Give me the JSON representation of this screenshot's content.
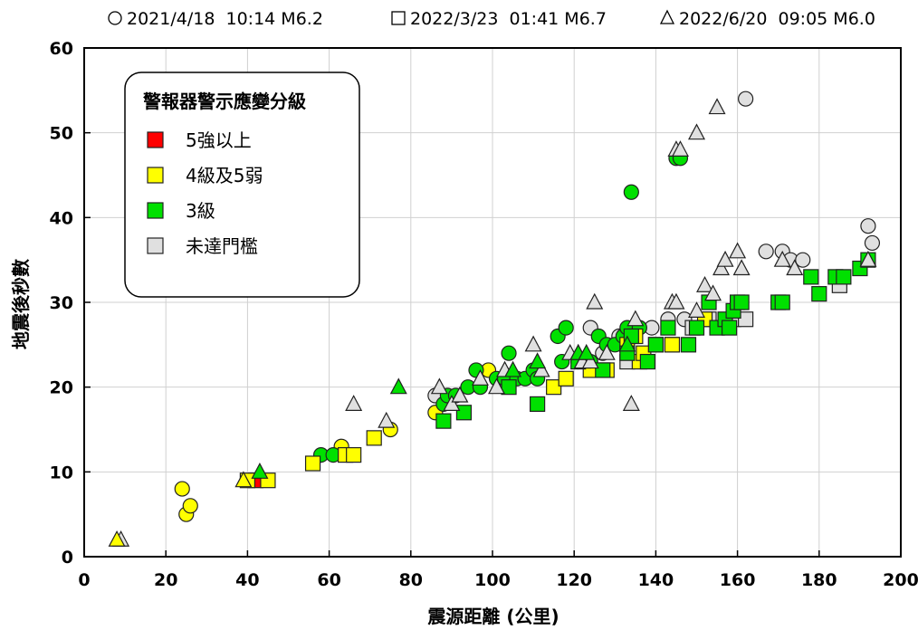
{
  "chart_data": {
    "type": "scatter",
    "xlabel": "震源距離 (公里)",
    "ylabel": "地震後秒數",
    "xlim": [
      0,
      200
    ],
    "ylim": [
      0,
      60
    ],
    "xticks": [
      0,
      20,
      40,
      60,
      80,
      100,
      120,
      140,
      160,
      180,
      200
    ],
    "yticks": [
      0,
      10,
      20,
      30,
      40,
      50,
      60
    ],
    "grid": true,
    "events": [
      {
        "marker": "circle",
        "label": "2021/4/18  10:14 M6.2"
      },
      {
        "marker": "square",
        "label": "2022/3/23  01:41 M6.7"
      },
      {
        "marker": "triangle",
        "label": "2022/6/20  09:05 M6.0"
      }
    ],
    "legend": {
      "title": "警報器警示應變分級",
      "position": "top-left",
      "items": [
        {
          "key": "red",
          "label": "5強以上",
          "color": "#ff0000"
        },
        {
          "key": "yellow",
          "label": "4級及5弱",
          "color": "#ffff00"
        },
        {
          "key": "green",
          "label": "3級",
          "color": "#00e000"
        },
        {
          "key": "gray",
          "label": "未達門檻",
          "color": "#e0e0e0"
        }
      ]
    },
    "series": [
      {
        "marker": "circle",
        "level": "gray",
        "points": [
          [
            86,
            19
          ],
          [
            124,
            27
          ],
          [
            127,
            24
          ],
          [
            131,
            26
          ],
          [
            139,
            27
          ],
          [
            143,
            28
          ],
          [
            147,
            28
          ],
          [
            162,
            54
          ],
          [
            167,
            36
          ],
          [
            171,
            36
          ],
          [
            173,
            35
          ],
          [
            176,
            35
          ],
          [
            192,
            39
          ],
          [
            193,
            37
          ],
          [
            111,
            22
          ]
        ]
      },
      {
        "marker": "circle",
        "level": "yellow",
        "points": [
          [
            24,
            8
          ],
          [
            25,
            5
          ],
          [
            26,
            6
          ],
          [
            63,
            13
          ],
          [
            75,
            15
          ],
          [
            86,
            17
          ],
          [
            99,
            22
          ]
        ]
      },
      {
        "marker": "circle",
        "level": "green",
        "points": [
          [
            58,
            12
          ],
          [
            61,
            12
          ],
          [
            88,
            18
          ],
          [
            89,
            19
          ],
          [
            91,
            19
          ],
          [
            94,
            20
          ],
          [
            96,
            22
          ],
          [
            97,
            20
          ],
          [
            101,
            21
          ],
          [
            103,
            21
          ],
          [
            104,
            24
          ],
          [
            106,
            21
          ],
          [
            108,
            21
          ],
          [
            110,
            22
          ],
          [
            111,
            21
          ],
          [
            116,
            26
          ],
          [
            118,
            27
          ],
          [
            117,
            23
          ],
          [
            121,
            23
          ],
          [
            124,
            23
          ],
          [
            126,
            26
          ],
          [
            128,
            25
          ],
          [
            130,
            25
          ],
          [
            132,
            26
          ],
          [
            133,
            27
          ],
          [
            134,
            43
          ],
          [
            136,
            27
          ],
          [
            145,
            47
          ],
          [
            146,
            47
          ]
        ]
      },
      {
        "marker": "square",
        "level": "gray",
        "points": [
          [
            133,
            23
          ],
          [
            144,
            25
          ],
          [
            149,
            27
          ],
          [
            153,
            28
          ],
          [
            159,
            28
          ],
          [
            162,
            28
          ],
          [
            185,
            32
          ]
        ]
      },
      {
        "marker": "square",
        "level": "red",
        "points": [
          [
            42,
            9
          ]
        ]
      },
      {
        "marker": "square",
        "level": "yellow",
        "points": [
          [
            40,
            9
          ],
          [
            45,
            9
          ],
          [
            56,
            11
          ],
          [
            64,
            12
          ],
          [
            66,
            12
          ],
          [
            71,
            14
          ],
          [
            115,
            20
          ],
          [
            118,
            21
          ],
          [
            124,
            22
          ],
          [
            128,
            22
          ],
          [
            133,
            25
          ],
          [
            135,
            26
          ],
          [
            136,
            23
          ],
          [
            137,
            24
          ],
          [
            140,
            25
          ],
          [
            144,
            25
          ],
          [
            152,
            28
          ]
        ]
      },
      {
        "marker": "square",
        "level": "green",
        "points": [
          [
            88,
            16
          ],
          [
            93,
            17
          ],
          [
            104,
            20
          ],
          [
            111,
            18
          ],
          [
            121,
            23
          ],
          [
            127,
            22
          ],
          [
            133,
            24
          ],
          [
            134,
            26
          ],
          [
            138,
            23
          ],
          [
            140,
            25
          ],
          [
            143,
            27
          ],
          [
            148,
            25
          ],
          [
            150,
            27
          ],
          [
            153,
            30
          ],
          [
            155,
            27
          ],
          [
            157,
            28
          ],
          [
            158,
            27
          ],
          [
            159,
            29
          ],
          [
            160,
            30
          ],
          [
            161,
            30
          ],
          [
            170,
            30
          ],
          [
            171,
            30
          ],
          [
            178,
            33
          ],
          [
            180,
            31
          ],
          [
            184,
            33
          ],
          [
            186,
            33
          ],
          [
            190,
            34
          ],
          [
            192,
            35
          ]
        ]
      },
      {
        "marker": "triangle",
        "level": "gray",
        "points": [
          [
            9,
            2
          ],
          [
            66,
            18
          ],
          [
            74,
            16
          ],
          [
            87,
            20
          ],
          [
            90,
            18
          ],
          [
            92,
            19
          ],
          [
            97,
            21
          ],
          [
            101,
            20
          ],
          [
            103,
            22
          ],
          [
            110,
            25
          ],
          [
            112,
            22
          ],
          [
            119,
            24
          ],
          [
            121,
            24
          ],
          [
            122,
            23
          ],
          [
            124,
            23
          ],
          [
            125,
            30
          ],
          [
            128,
            24
          ],
          [
            134,
            18
          ],
          [
            135,
            28
          ],
          [
            144,
            30
          ],
          [
            145,
            30
          ],
          [
            145,
            48
          ],
          [
            146,
            48
          ],
          [
            150,
            50
          ],
          [
            150,
            29
          ],
          [
            152,
            32
          ],
          [
            154,
            31
          ],
          [
            155,
            53
          ],
          [
            156,
            34
          ],
          [
            157,
            35
          ],
          [
            160,
            36
          ],
          [
            161,
            34
          ],
          [
            171,
            35
          ],
          [
            174,
            34
          ],
          [
            192,
            35
          ]
        ]
      },
      {
        "marker": "triangle",
        "level": "yellow",
        "points": [
          [
            8,
            2
          ],
          [
            39,
            9
          ]
        ]
      },
      {
        "marker": "triangle",
        "level": "green",
        "points": [
          [
            43,
            10
          ],
          [
            77,
            20
          ],
          [
            105,
            22
          ],
          [
            111,
            23
          ],
          [
            121,
            24
          ],
          [
            123,
            24
          ],
          [
            133,
            25
          ]
        ]
      }
    ]
  }
}
